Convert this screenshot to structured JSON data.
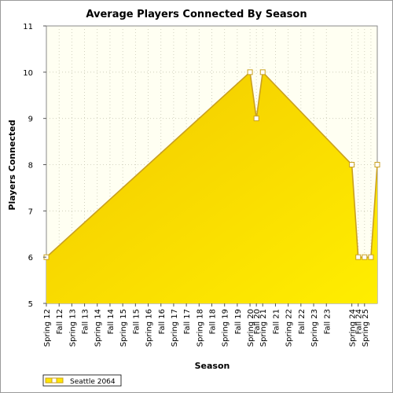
{
  "chart_data": {
    "type": "area",
    "title": "Average Players Connected By Season",
    "xlabel": "Season",
    "ylabel": "Players Connected",
    "ylim": [
      5,
      11
    ],
    "yticks": [
      5,
      6,
      7,
      8,
      9,
      10,
      11
    ],
    "grid": true,
    "legend_position": "bottom-left",
    "categories": [
      "Spring 12",
      "Fall 12",
      "Spring 13",
      "Fall 13",
      "Spring 14",
      "Fall 14",
      "Spring 15",
      "Fall 15",
      "Spring 16",
      "Fall 16",
      "Spring 17",
      "Fall 17",
      "Spring 18",
      "Fall 18",
      "Spring 19",
      "Fall 19",
      "Spring 20",
      "Fall 20",
      "Spring 21",
      "Fall 21",
      "Spring 22",
      "Fall 22",
      "Spring 23",
      "Fall 23",
      "Spring 24",
      "Fall 24",
      "Spring 25"
    ],
    "x_fractions": [
      0.0,
      0.0385,
      0.0769,
      0.1154,
      0.1538,
      0.1923,
      0.2308,
      0.2692,
      0.3077,
      0.3462,
      0.3846,
      0.4231,
      0.4615,
      0.5,
      0.5385,
      0.5769,
      0.6154,
      0.6346,
      0.6538,
      0.6923,
      0.7308,
      0.7692,
      0.8077,
      0.8462,
      0.9231,
      0.9423,
      0.9615,
      0.9808,
      1.0
    ],
    "series": [
      {
        "name": "Seattle 2064",
        "color": "#ffe600",
        "line_color": "#c9a020",
        "points": [
          {
            "x": 0.0,
            "y": 6
          },
          {
            "x": 0.6154,
            "y": 10
          },
          {
            "x": 0.6346,
            "y": 9
          },
          {
            "x": 0.6538,
            "y": 10
          },
          {
            "x": 0.9231,
            "y": 8
          },
          {
            "x": 0.9423,
            "y": 6
          },
          {
            "x": 0.9615,
            "y": 6
          },
          {
            "x": 0.9808,
            "y": 6
          },
          {
            "x": 1.0,
            "y": 8
          }
        ]
      }
    ]
  },
  "colors": {
    "plot_background": "#fffff2",
    "grid": "#c8c8b4",
    "area_fill_top": "#f2c800",
    "area_fill_bottom": "#ffee00",
    "frame": "#9a9a9a"
  }
}
